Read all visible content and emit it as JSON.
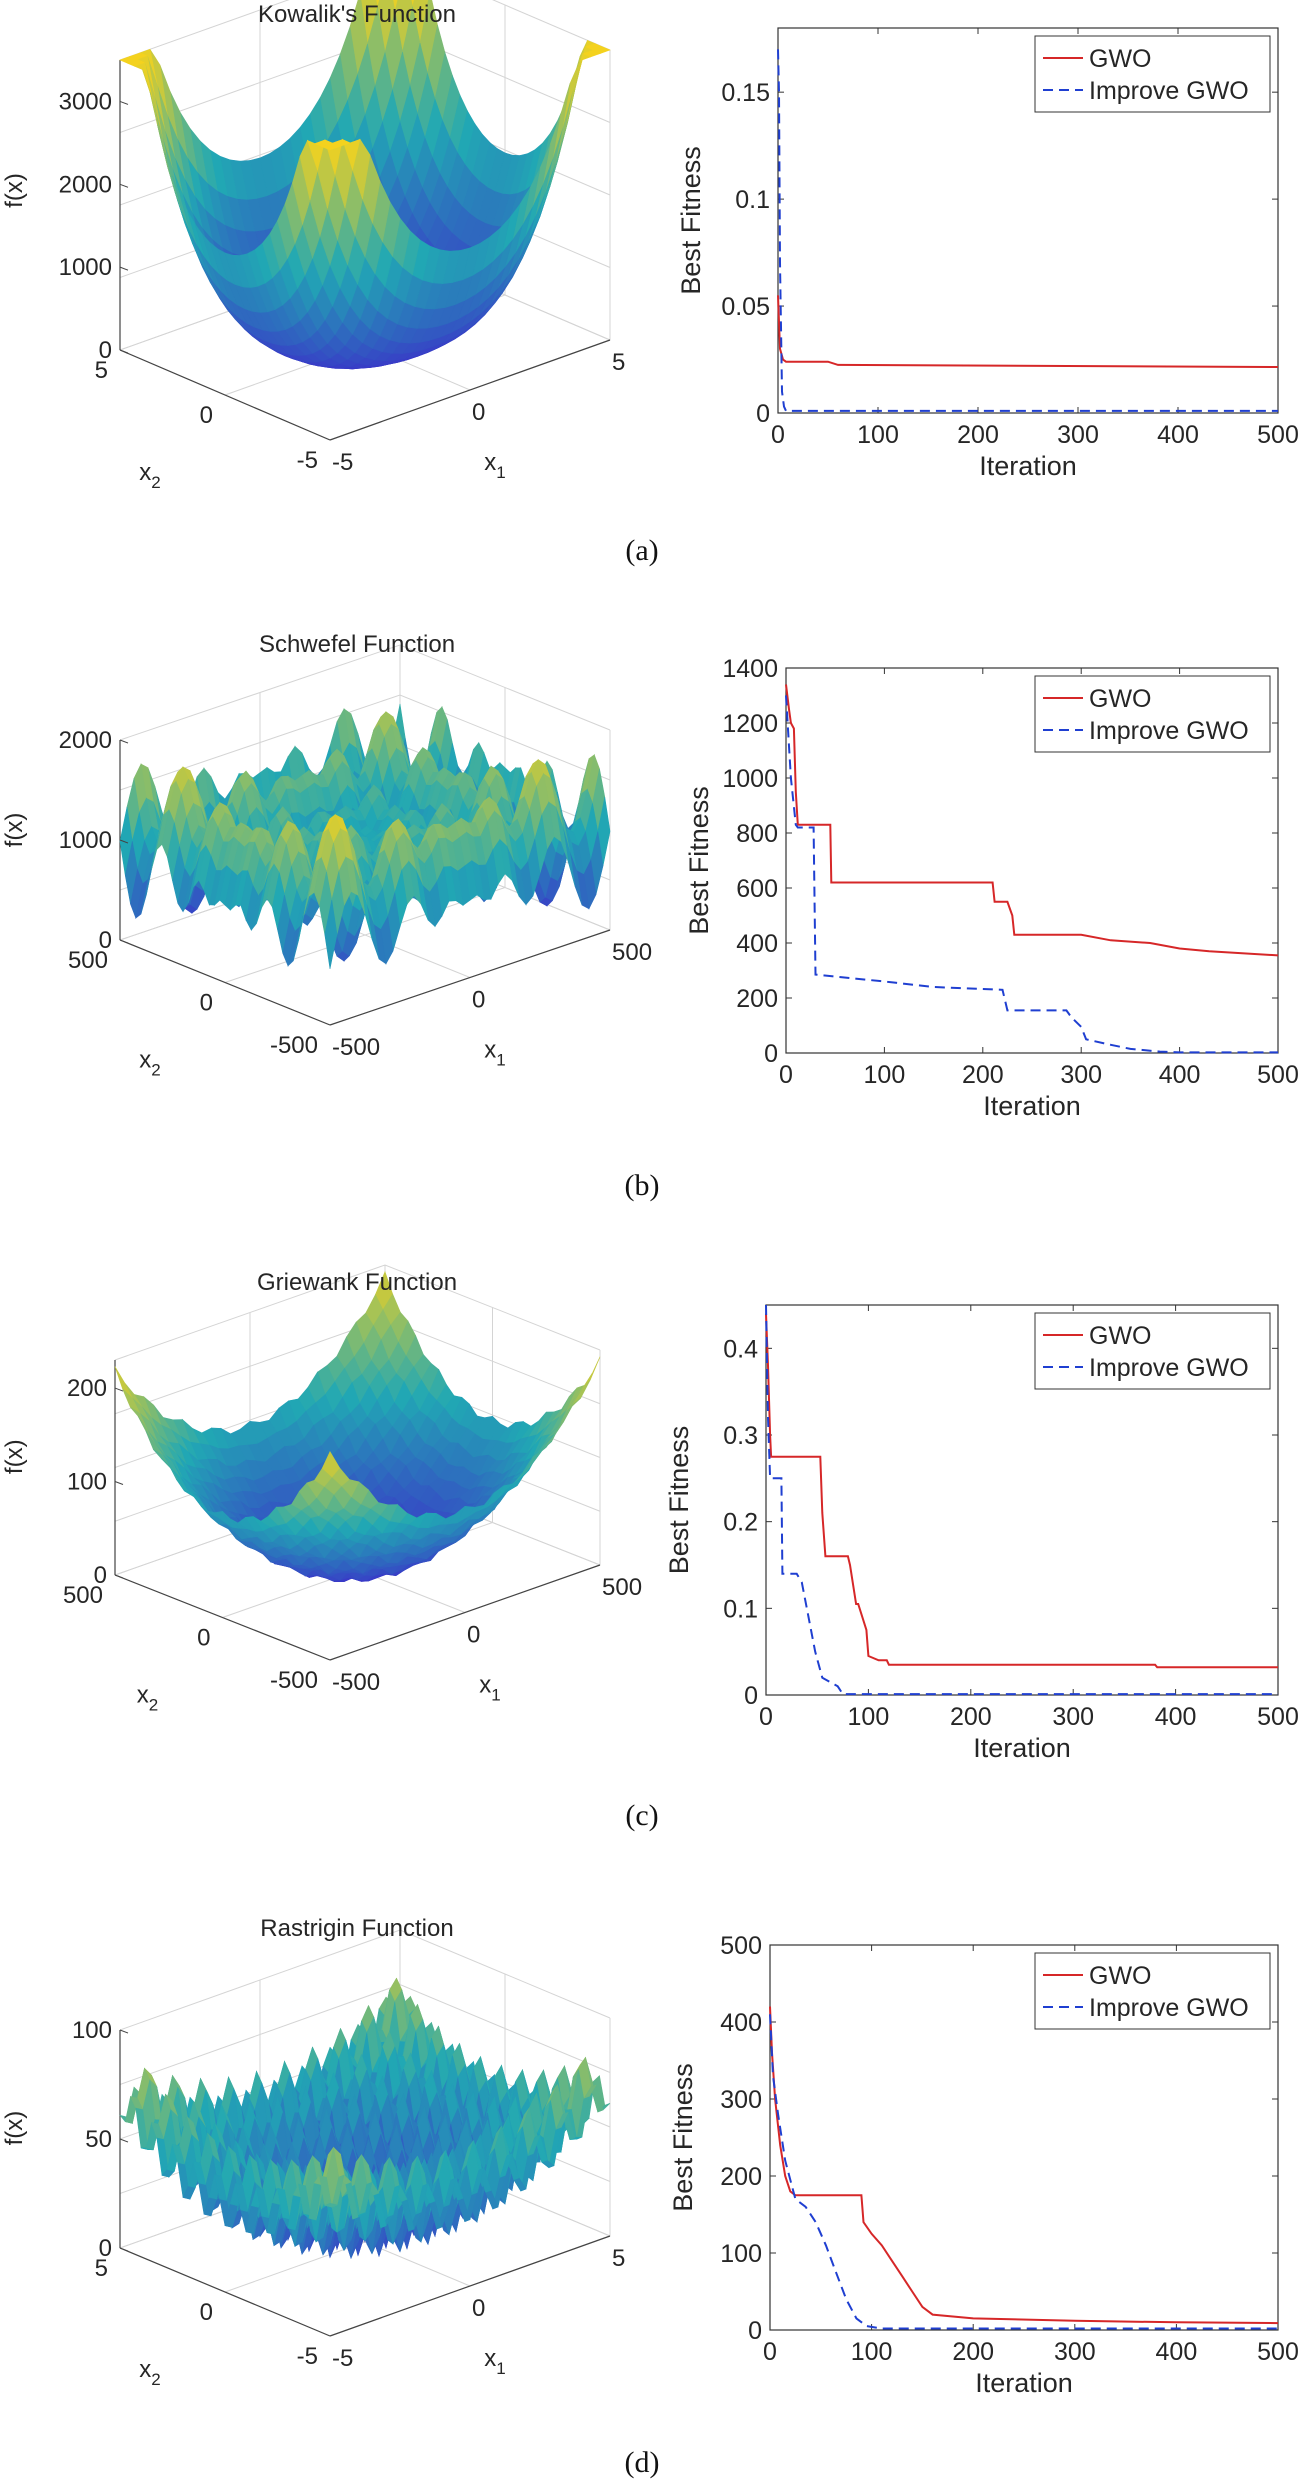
{
  "figure": {
    "captions": [
      "(a)",
      "(b)",
      "(c)",
      "(d)"
    ]
  },
  "colors": {
    "gwo": "#d62728",
    "improve": "#1f3fd1",
    "surface_low": "#3b2fc9",
    "surface_mid": "#21a8b4",
    "surface_high": "#f4d21e"
  },
  "chart_data": [
    {
      "type": "surface",
      "kind": "kowalik",
      "title": "Kowalik's Function",
      "zlabel": "f(x)",
      "xlabel": "x",
      "xlabel_sub": "1",
      "ylabel": "x",
      "ylabel_sub": "2",
      "zticks": [
        "3000",
        "2000",
        "1000",
        "0"
      ],
      "x1ticks": [
        "-5",
        "0",
        "5"
      ],
      "x2ticks": [
        "5",
        "0",
        "-5"
      ],
      "xlim": [
        -5,
        5
      ],
      "ylim": [
        -5,
        5
      ],
      "zlim": [
        0,
        3500
      ]
    },
    {
      "type": "line",
      "ylabel": "Best Fitness",
      "xlabel": "Iteration",
      "xlim": [
        0,
        500
      ],
      "ylim": [
        0,
        0.18
      ],
      "xticks": [
        0,
        100,
        200,
        300,
        400,
        500
      ],
      "xtick_labels": [
        "0",
        "100",
        "200",
        "300",
        "400",
        "500"
      ],
      "yticks": [
        0,
        0.05,
        0.1,
        0.15
      ],
      "ytick_labels": [
        "0",
        "0.05",
        "0.1",
        "0.15"
      ],
      "legend": {
        "position": "top-right"
      },
      "series": [
        {
          "name": "GWO",
          "style": "solid",
          "x": [
            0,
            2,
            5,
            8,
            50,
            60,
            500
          ],
          "y": [
            0.055,
            0.03,
            0.025,
            0.024,
            0.024,
            0.0225,
            0.0215
          ]
        },
        {
          "name": "Improve GWO",
          "style": "dashed",
          "x": [
            0,
            1,
            2,
            4,
            6,
            8,
            500
          ],
          "y": [
            0.17,
            0.15,
            0.07,
            0.01,
            0.003,
            0.001,
            0.001
          ]
        }
      ]
    },
    {
      "type": "surface",
      "kind": "schwefel",
      "title": "Schwefel Function",
      "zlabel": "f(x)",
      "xlabel": "x",
      "xlabel_sub": "1",
      "ylabel": "x",
      "ylabel_sub": "2",
      "zticks": [
        "2000",
        "1000",
        "0"
      ],
      "x1ticks": [
        "-500",
        "0",
        "500"
      ],
      "x2ticks": [
        "500",
        "0",
        "-500"
      ],
      "xlim": [
        -500,
        500
      ],
      "ylim": [
        -500,
        500
      ],
      "zlim": [
        0,
        2000
      ]
    },
    {
      "type": "line",
      "ylabel": "Best Fitness",
      "xlabel": "Iteration",
      "xlim": [
        0,
        500
      ],
      "ylim": [
        0,
        1400
      ],
      "xticks": [
        0,
        100,
        200,
        300,
        400,
        500
      ],
      "xtick_labels": [
        "0",
        "100",
        "200",
        "300",
        "400",
        "500"
      ],
      "yticks": [
        0,
        200,
        400,
        600,
        800,
        1000,
        1200,
        1400
      ],
      "ytick_labels": [
        "0",
        "200",
        "400",
        "600",
        "800",
        "1000",
        "1200",
        "1400"
      ],
      "legend": {
        "position": "top-right"
      },
      "series": [
        {
          "name": "GWO",
          "style": "solid",
          "x": [
            0,
            3,
            5,
            8,
            10,
            12,
            15,
            45,
            46,
            210,
            212,
            225,
            230,
            232,
            260,
            300,
            330,
            370,
            400,
            430,
            500
          ],
          "y": [
            1340,
            1250,
            1200,
            1180,
            950,
            830,
            830,
            830,
            620,
            620,
            550,
            550,
            500,
            430,
            430,
            430,
            410,
            400,
            380,
            370,
            355
          ]
        },
        {
          "name": "Improve GWO",
          "style": "dashed",
          "x": [
            0,
            5,
            10,
            12,
            28,
            30,
            100,
            150,
            220,
            225,
            285,
            290,
            300,
            305,
            330,
            350,
            380,
            400,
            500
          ],
          "y": [
            1300,
            1000,
            830,
            820,
            820,
            285,
            260,
            240,
            230,
            155,
            155,
            130,
            95,
            50,
            30,
            15,
            5,
            2,
            2
          ]
        }
      ]
    },
    {
      "type": "surface",
      "kind": "griewank",
      "title": "Griewank Function",
      "zlabel": "f(x)",
      "xlabel": "x",
      "xlabel_sub": "1",
      "ylabel": "x",
      "ylabel_sub": "2",
      "zticks": [
        "200",
        "100",
        "0"
      ],
      "x1ticks": [
        "-500",
        "0",
        "500"
      ],
      "x2ticks": [
        "500",
        "0",
        "-500"
      ],
      "xlim": [
        -500,
        500
      ],
      "ylim": [
        -500,
        500
      ],
      "zlim": [
        0,
        230
      ]
    },
    {
      "type": "line",
      "ylabel": "Best Fitness",
      "xlabel": "Iteration",
      "xlim": [
        0,
        500
      ],
      "ylim": [
        0,
        0.45
      ],
      "xticks": [
        0,
        100,
        200,
        300,
        400,
        500
      ],
      "xtick_labels": [
        "0",
        "100",
        "200",
        "300",
        "400",
        "500"
      ],
      "yticks": [
        0,
        0.1,
        0.2,
        0.3,
        0.4
      ],
      "ytick_labels": [
        "0",
        "0.1",
        "0.2",
        "0.3",
        "0.4"
      ],
      "legend": {
        "position": "top-right"
      },
      "series": [
        {
          "name": "GWO",
          "style": "solid",
          "x": [
            0,
            2,
            4,
            5,
            53,
            55,
            58,
            80,
            82,
            88,
            90,
            98,
            100,
            110,
            118,
            120,
            380,
            382,
            500
          ],
          "y": [
            0.44,
            0.38,
            0.3,
            0.275,
            0.275,
            0.21,
            0.16,
            0.16,
            0.15,
            0.105,
            0.105,
            0.075,
            0.045,
            0.04,
            0.04,
            0.035,
            0.035,
            0.032,
            0.032
          ]
        },
        {
          "name": "Improve GWO",
          "style": "dashed",
          "x": [
            0,
            2,
            4,
            15,
            16,
            30,
            35,
            48,
            55,
            70,
            75,
            500
          ],
          "y": [
            0.45,
            0.32,
            0.25,
            0.25,
            0.14,
            0.14,
            0.13,
            0.05,
            0.02,
            0.01,
            0.001,
            0.001
          ]
        }
      ]
    },
    {
      "type": "surface",
      "kind": "rastrigin",
      "title": "Rastrigin Function",
      "zlabel": "f(x)",
      "xlabel": "x",
      "xlabel_sub": "1",
      "ylabel": "x",
      "ylabel_sub": "2",
      "zticks": [
        "100",
        "50",
        "0"
      ],
      "x1ticks": [
        "-5",
        "0",
        "5"
      ],
      "x2ticks": [
        "5",
        "0",
        "-5"
      ],
      "xlim": [
        -5,
        5
      ],
      "ylim": [
        -5,
        5
      ],
      "zlim": [
        0,
        100
      ]
    },
    {
      "type": "line",
      "ylabel": "Best Fitness",
      "xlabel": "Iteration",
      "xlim": [
        0,
        500
      ],
      "ylim": [
        0,
        500
      ],
      "xticks": [
        0,
        100,
        200,
        300,
        400,
        500
      ],
      "xtick_labels": [
        "0",
        "100",
        "200",
        "300",
        "400",
        "500"
      ],
      "yticks": [
        0,
        100,
        200,
        300,
        400,
        500
      ],
      "ytick_labels": [
        "0",
        "100",
        "200",
        "300",
        "400",
        "500"
      ],
      "legend": {
        "position": "top-right"
      },
      "series": [
        {
          "name": "GWO",
          "style": "solid",
          "x": [
            0,
            2,
            5,
            10,
            15,
            20,
            25,
            90,
            92,
            100,
            110,
            120,
            130,
            140,
            150,
            160,
            200,
            300,
            400,
            500
          ],
          "y": [
            420,
            360,
            300,
            240,
            200,
            180,
            175,
            175,
            140,
            125,
            110,
            90,
            70,
            50,
            30,
            20,
            15,
            12,
            10,
            9
          ]
        },
        {
          "name": "Improve GWO",
          "style": "dashed",
          "x": [
            0,
            3,
            8,
            15,
            25,
            35,
            45,
            55,
            65,
            75,
            85,
            95,
            110,
            500
          ],
          "y": [
            410,
            330,
            280,
            220,
            170,
            160,
            140,
            110,
            75,
            40,
            15,
            5,
            2,
            2
          ]
        }
      ]
    }
  ]
}
